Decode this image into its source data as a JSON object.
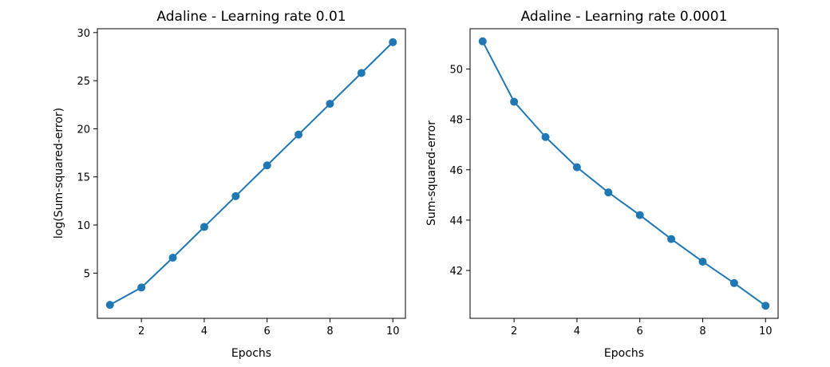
{
  "colors": {
    "series": "#1f77b4",
    "axes": "#000000",
    "background": "#ffffff"
  },
  "chart_data": [
    {
      "type": "line",
      "title": "Adaline - Learning rate 0.01",
      "xlabel": "Epochs",
      "ylabel": "log(Sum-squared-error)",
      "x": [
        1,
        2,
        3,
        4,
        5,
        6,
        7,
        8,
        9,
        10
      ],
      "series": [
        {
          "values": [
            1.7,
            3.5,
            6.6,
            9.8,
            13.0,
            16.2,
            19.4,
            22.6,
            25.8,
            29.0
          ],
          "marker": "circle"
        }
      ],
      "xlim": [
        0.6,
        10.4
      ],
      "ylim": [
        0.3,
        30.4
      ],
      "xticks": [
        2,
        4,
        6,
        8,
        10
      ],
      "yticks": [
        5,
        10,
        15,
        20,
        25,
        30
      ],
      "grid": false
    },
    {
      "type": "line",
      "title": "Adaline - Learning rate 0.0001",
      "xlabel": "Epochs",
      "ylabel": "Sum-squared-error",
      "x": [
        1,
        2,
        3,
        4,
        5,
        6,
        7,
        8,
        9,
        10
      ],
      "series": [
        {
          "values": [
            51.1,
            48.7,
            47.3,
            46.1,
            45.1,
            44.2,
            43.25,
            42.35,
            41.5,
            40.6
          ],
          "marker": "circle"
        }
      ],
      "xlim": [
        0.6,
        10.4
      ],
      "ylim": [
        40.1,
        51.6
      ],
      "xticks": [
        2,
        4,
        6,
        8,
        10
      ],
      "yticks": [
        42,
        44,
        46,
        48,
        50
      ],
      "grid": false
    }
  ]
}
